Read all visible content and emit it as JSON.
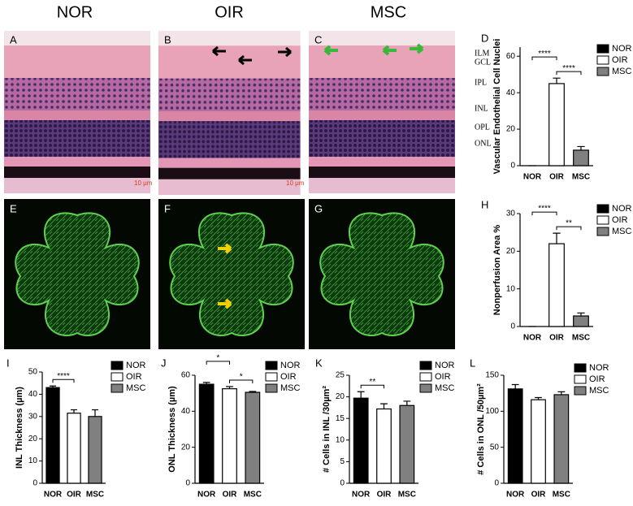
{
  "figure": {
    "columns": [
      "NOR",
      "OIR",
      "MSC"
    ],
    "panels": [
      "A",
      "B",
      "C",
      "E",
      "F",
      "G"
    ],
    "scale_bars": [
      "10 μm",
      "10 μm"
    ],
    "layers": [
      "ILM",
      "GCL",
      "IPL",
      "INL",
      "OPL",
      "ONL"
    ]
  },
  "chart_data": [
    {
      "type": "bar",
      "label": "D",
      "ylabel": "Vascular Endothelial Cell Nuclei",
      "categories": [
        "NOR",
        "OIR",
        "MSC"
      ],
      "values": [
        0,
        45,
        8.5
      ],
      "errors": [
        0,
        3,
        2
      ],
      "colors": [
        "#000000",
        "#ffffff",
        "#808080"
      ],
      "ylim": [
        0,
        65
      ],
      "yticks": [
        0,
        20,
        40,
        60
      ],
      "significance": [
        {
          "text": "****",
          "between": [
            "NOR",
            "OIR"
          ]
        },
        {
          "text": "****",
          "between": [
            "OIR",
            "MSC"
          ]
        }
      ]
    },
    {
      "type": "bar",
      "label": "H",
      "ylabel": "Nonperfusion Area %",
      "categories": [
        "NOR",
        "OIR",
        "MSC"
      ],
      "values": [
        0,
        22,
        2.8
      ],
      "errors": [
        0,
        2.8,
        0.8
      ],
      "colors": [
        "#000000",
        "#ffffff",
        "#808080"
      ],
      "ylim": [
        0,
        30
      ],
      "yticks": [
        0,
        10,
        20,
        30
      ],
      "significance": [
        {
          "text": "****",
          "between": [
            "NOR",
            "OIR"
          ]
        },
        {
          "text": "**",
          "between": [
            "OIR",
            "MSC"
          ]
        }
      ]
    },
    {
      "type": "bar",
      "label": "I",
      "ylabel": "INL Thickness (µm)",
      "categories": [
        "NOR",
        "OIR",
        "MSC"
      ],
      "values": [
        43,
        31.5,
        30
      ],
      "errors": [
        0.7,
        1.5,
        3
      ],
      "colors": [
        "#000000",
        "#ffffff",
        "#808080"
      ],
      "ylim": [
        0,
        50
      ],
      "yticks": [
        0,
        10,
        20,
        30,
        40,
        50
      ],
      "significance": [
        {
          "text": "****",
          "between": [
            "NOR",
            "OIR"
          ]
        }
      ]
    },
    {
      "type": "bar",
      "label": "J",
      "ylabel": "ONL Thickness (µm)",
      "categories": [
        "NOR",
        "OIR",
        "MSC"
      ],
      "values": [
        55,
        52.5,
        50.5
      ],
      "errors": [
        1,
        1.2,
        0.5
      ],
      "colors": [
        "#000000",
        "#ffffff",
        "#808080"
      ],
      "ylim": [
        0,
        60
      ],
      "yticks": [
        0,
        20,
        40,
        60
      ],
      "significance": [
        {
          "text": "*",
          "between": [
            "NOR",
            "OIR"
          ]
        },
        {
          "text": "*",
          "between": [
            "OIR",
            "MSC"
          ]
        }
      ]
    },
    {
      "type": "bar",
      "label": "K",
      "ylabel": "# Cells in INL /30µm²",
      "categories": [
        "NOR",
        "OIR",
        "MSC"
      ],
      "values": [
        19.7,
        17.2,
        18
      ],
      "errors": [
        1.5,
        1.2,
        1
      ],
      "colors": [
        "#000000",
        "#ffffff",
        "#808080"
      ],
      "ylim": [
        0,
        25
      ],
      "yticks": [
        0,
        5,
        10,
        15,
        20,
        25
      ],
      "significance": [
        {
          "text": "**",
          "between": [
            "NOR",
            "OIR"
          ]
        }
      ]
    },
    {
      "type": "bar",
      "label": "L",
      "ylabel": "# Cells in ONL /50µm²",
      "categories": [
        "NOR",
        "OIR",
        "MSC"
      ],
      "values": [
        131,
        116,
        123
      ],
      "errors": [
        6,
        3,
        4
      ],
      "colors": [
        "#000000",
        "#ffffff",
        "#808080"
      ],
      "ylim": [
        0,
        150
      ],
      "yticks": [
        0,
        50,
        100,
        150
      ],
      "significance": []
    }
  ]
}
